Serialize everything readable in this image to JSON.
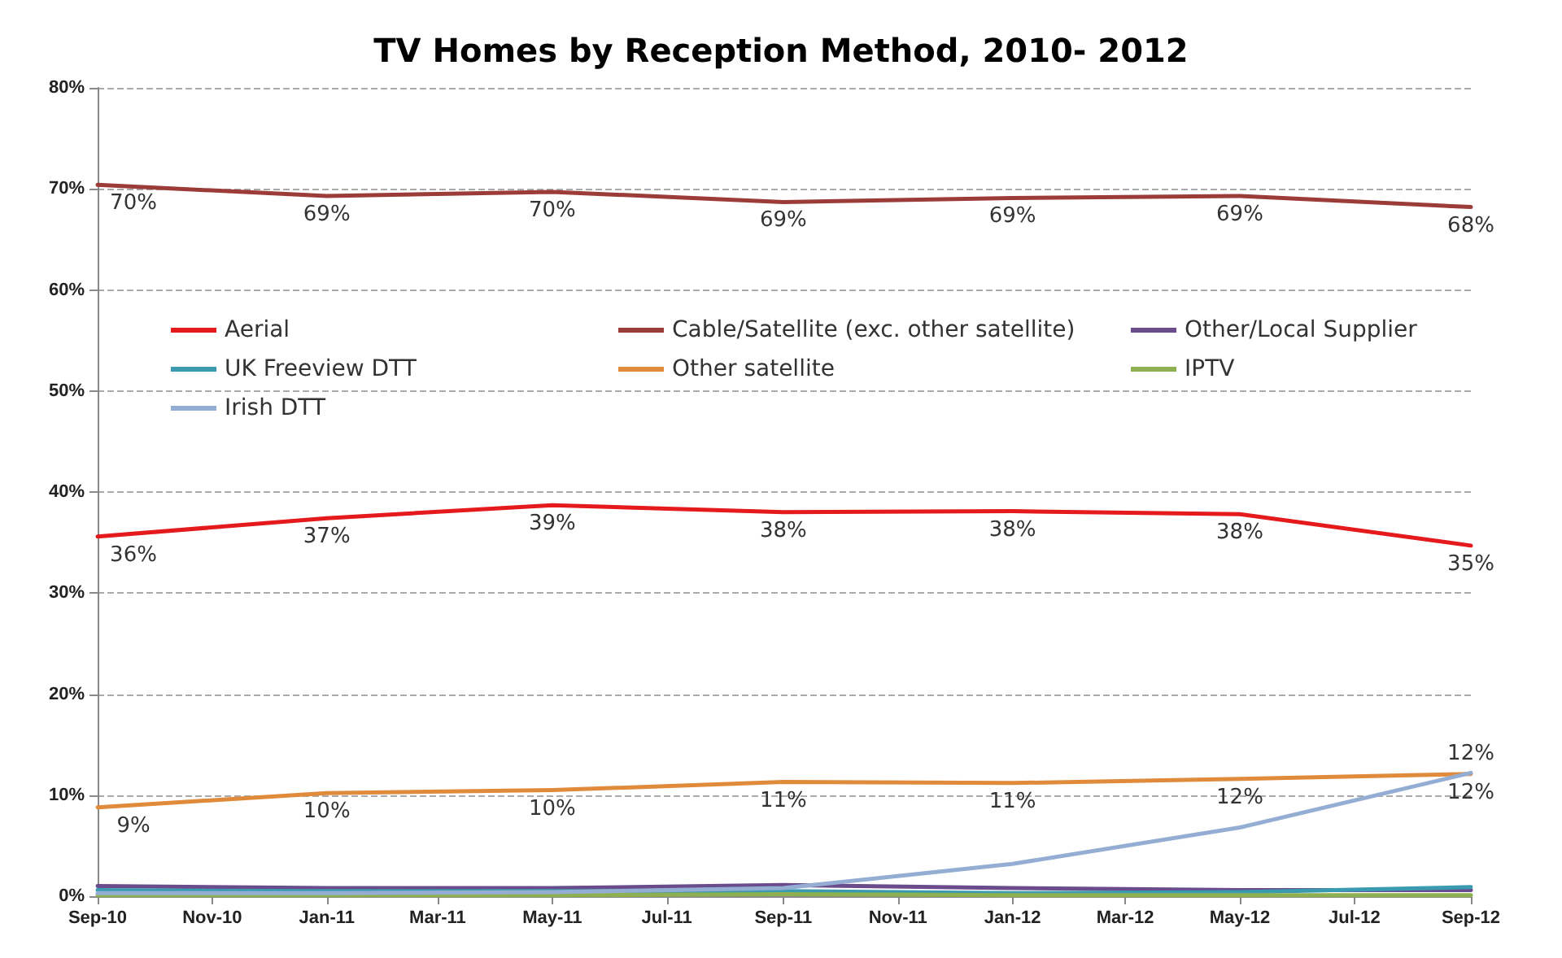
{
  "chart_data": {
    "type": "line",
    "title": "TV Homes by Reception Method, 2010- 2012",
    "x": [
      "2010-09",
      "2011-01",
      "2011-05",
      "2011-09",
      "2012-01",
      "2012-05",
      "2012-09"
    ],
    "xlim": [
      "2010-09",
      "2012-09"
    ],
    "xticks": [
      {
        "value": "2010-09",
        "label": "Sep-10"
      },
      {
        "value": "2010-11",
        "label": "Nov-10"
      },
      {
        "value": "2011-01",
        "label": "Jan-11"
      },
      {
        "value": "2011-03",
        "label": "Mar-11"
      },
      {
        "value": "2011-05",
        "label": "May-11"
      },
      {
        "value": "2011-07",
        "label": "Jul-11"
      },
      {
        "value": "2011-09",
        "label": "Sep-11"
      },
      {
        "value": "2011-11",
        "label": "Nov-11"
      },
      {
        "value": "2012-01",
        "label": "Jan-12"
      },
      {
        "value": "2012-03",
        "label": "Mar-12"
      },
      {
        "value": "2012-05",
        "label": "May-12"
      },
      {
        "value": "2012-07",
        "label": "Jul-12"
      },
      {
        "value": "2012-09",
        "label": "Sep-12"
      }
    ],
    "ylim": [
      0,
      80
    ],
    "yticks": [
      {
        "value": 0,
        "label": "0%"
      },
      {
        "value": 10,
        "label": "10%"
      },
      {
        "value": 20,
        "label": "20%"
      },
      {
        "value": 30,
        "label": "30%"
      },
      {
        "value": 40,
        "label": "40%"
      },
      {
        "value": 50,
        "label": "50%"
      },
      {
        "value": 60,
        "label": "60%"
      },
      {
        "value": 70,
        "label": "70%"
      },
      {
        "value": 80,
        "label": "80%"
      }
    ],
    "grid": "y",
    "legend": "top left",
    "line_style": "solid",
    "series": [
      {
        "name": "Aerial",
        "color": "#e41a1c",
        "values": [
          35.6,
          37.4,
          38.7,
          38.0,
          38.1,
          37.8,
          34.7
        ],
        "value_labels": [
          "36%",
          "37%",
          "39%",
          "38%",
          "38%",
          "38%",
          "35%"
        ]
      },
      {
        "name": "Cable/Satellite (exc. other satellite)",
        "color": "#9c3c38",
        "values": [
          70.4,
          69.3,
          69.7,
          68.7,
          69.1,
          69.3,
          68.2
        ],
        "value_labels": [
          "70%",
          "69%",
          "70%",
          "69%",
          "69%",
          "69%",
          "68%"
        ]
      },
      {
        "name": "Other/Local Supplier",
        "color": "#6a4c8c",
        "values": [
          1.0,
          0.8,
          0.8,
          1.1,
          0.8,
          0.6,
          0.6
        ]
      },
      {
        "name": "UK Freeview DTT",
        "color": "#3a9bb0",
        "values": [
          0.6,
          0.5,
          0.5,
          0.5,
          0.3,
          0.4,
          0.9
        ]
      },
      {
        "name": "Other satellite",
        "color": "#e08a3c",
        "values": [
          8.8,
          10.2,
          10.5,
          11.3,
          11.2,
          11.6,
          12.1
        ],
        "value_labels": [
          "9%",
          "10%",
          "10%",
          "11%",
          "11%",
          "12%",
          "12%"
        ]
      },
      {
        "name": "IPTV",
        "color": "#8fb050",
        "values": [
          0.1,
          0.1,
          0.1,
          0.2,
          0.1,
          0.1,
          0.1
        ]
      },
      {
        "name": "Irish DTT",
        "color": "#94aed3",
        "values": [
          0.3,
          0.3,
          0.4,
          0.8,
          3.2,
          6.8,
          12.2
        ],
        "value_labels": [
          null,
          null,
          null,
          null,
          null,
          null,
          "12%"
        ]
      }
    ]
  }
}
